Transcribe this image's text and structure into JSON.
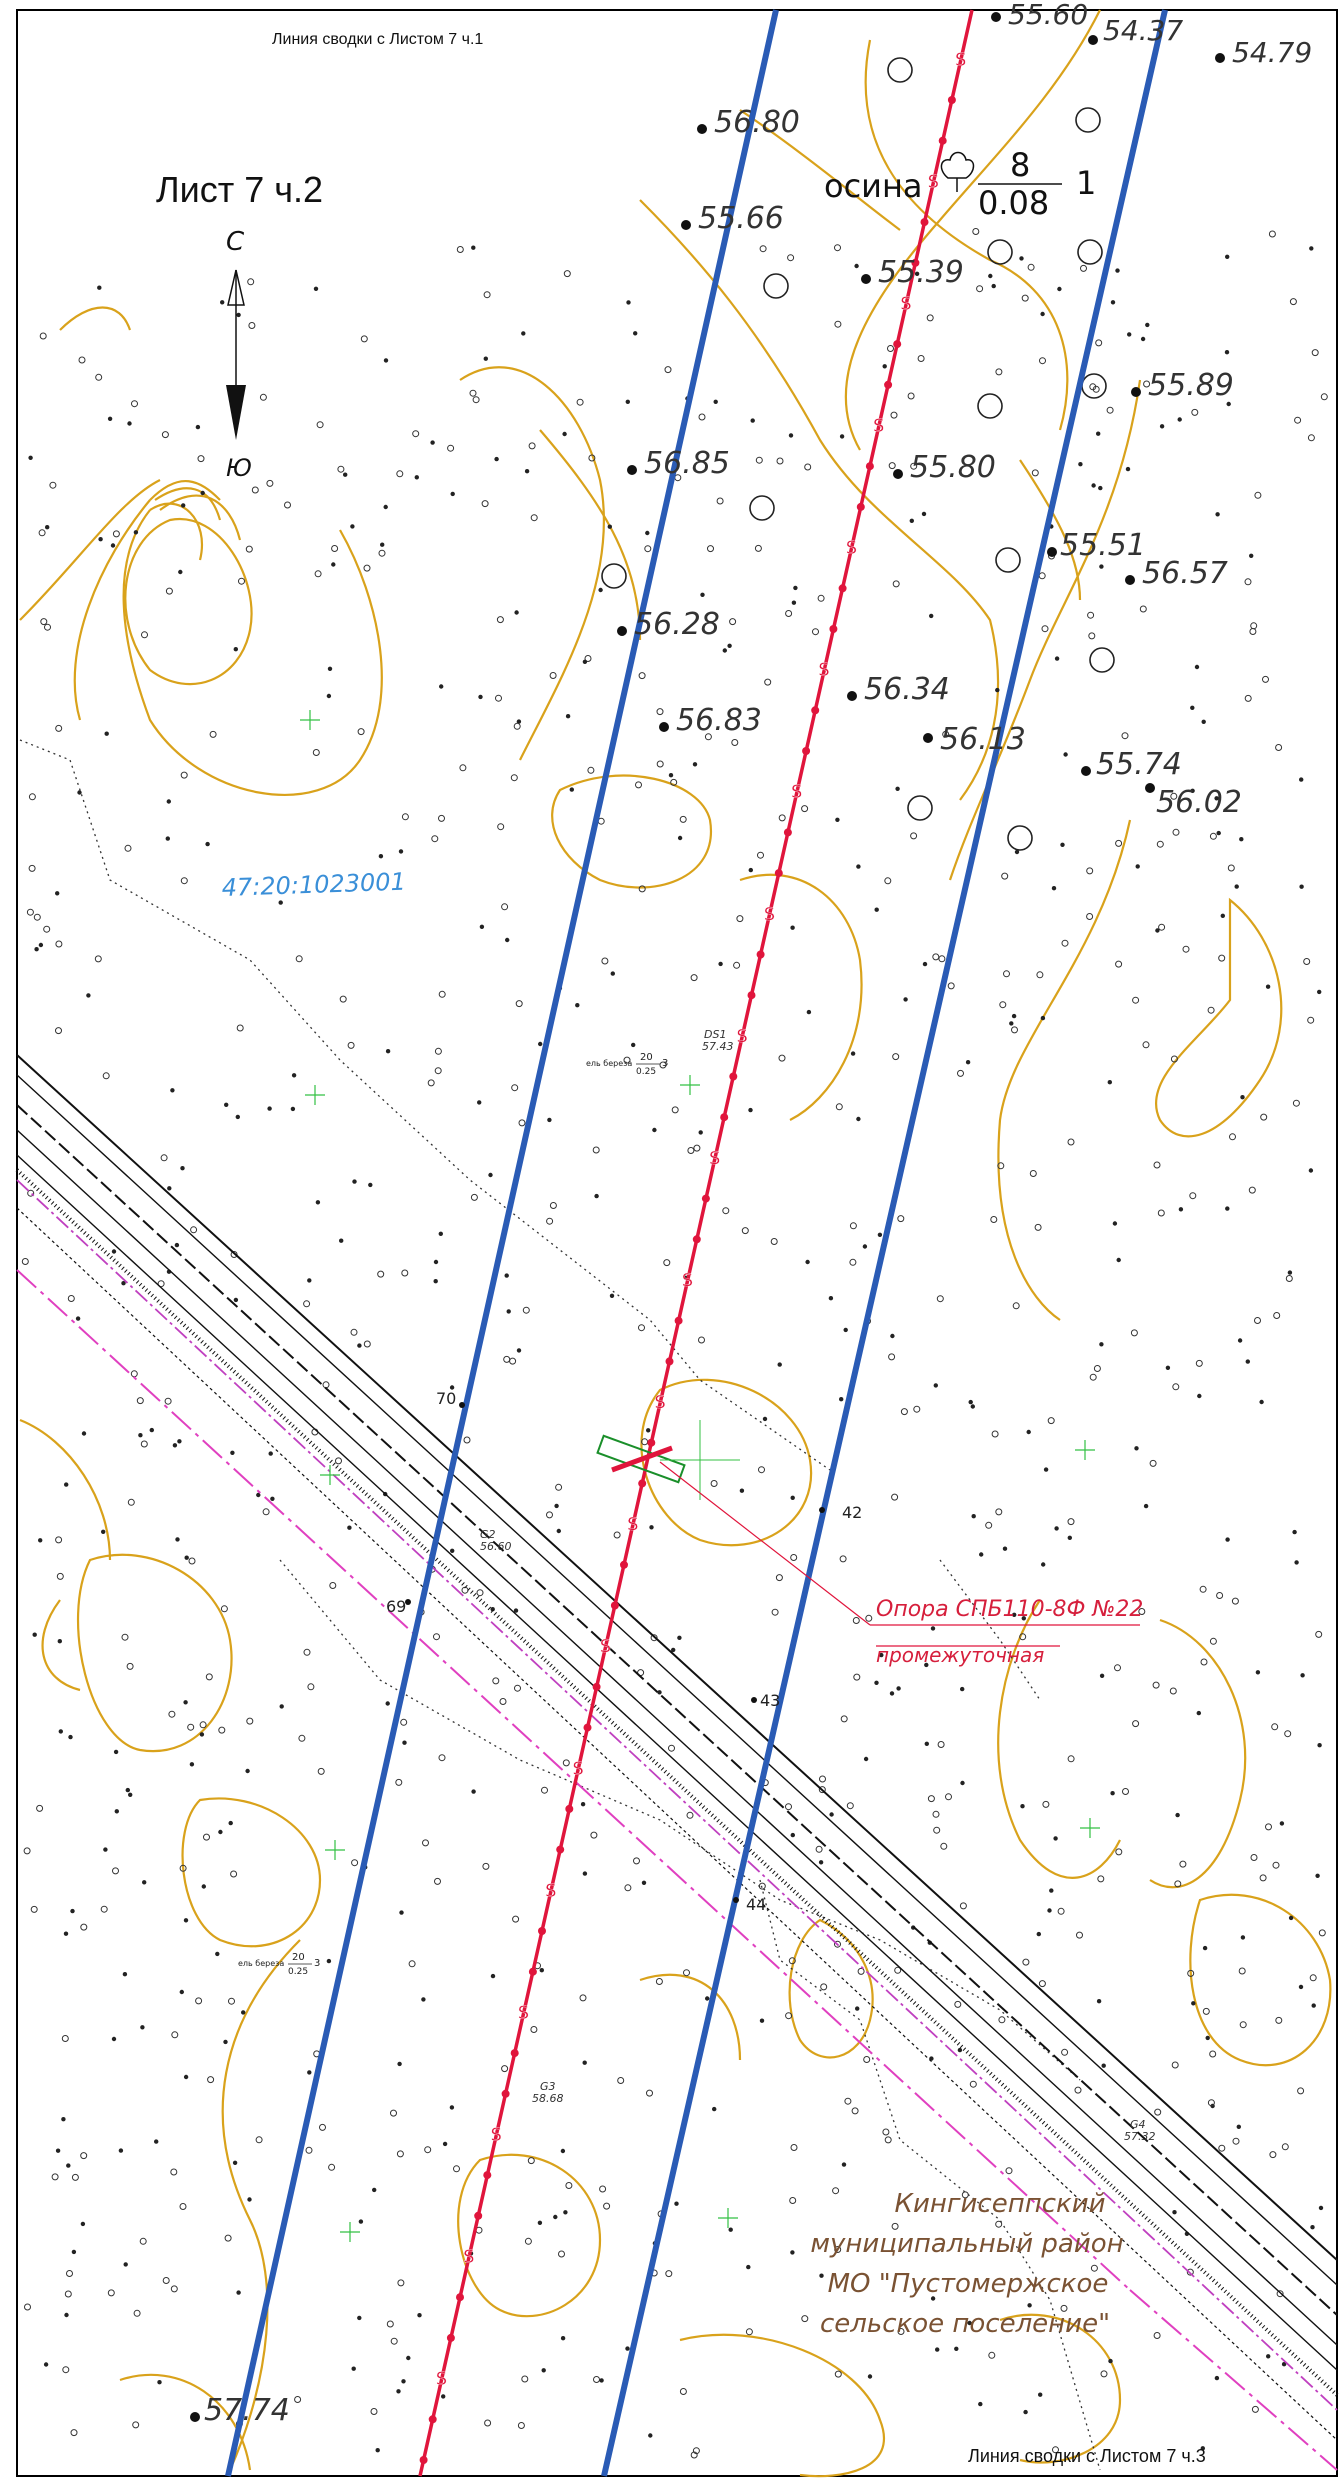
{
  "sheet": {
    "match_top": "Линия сводки с Листом 7 ч.1",
    "title": "Лист 7 ч.2",
    "match_bottom": "Линия сводки с Листом 7 ч.3"
  },
  "north_arrow": {
    "north": "С",
    "south": "Ю"
  },
  "tree_symbol": {
    "species": "осина",
    "numerator": "8",
    "denominator": "0.08",
    "count": "1"
  },
  "small_tree_labels": [
    {
      "species": "ель береза",
      "numerator": "20",
      "denominator": "0.25",
      "count": "3"
    },
    {
      "species": "ель береза",
      "numerator": "20",
      "denominator": "0.25",
      "count": "3"
    }
  ],
  "cadastral_number": "47:20:1023001",
  "support": {
    "line1": "Опора СПБ110-8Ф №22",
    "line2": "промежуточная"
  },
  "district": {
    "line1": "Кингисеппский",
    "line2": "муниципальный район",
    "line3": "МО \"Пустомержское",
    "line4": "сельское поселение\""
  },
  "elevations": [
    {
      "value": "55.60"
    },
    {
      "value": "54.37"
    },
    {
      "value": "54.79"
    },
    {
      "value": "56.80"
    },
    {
      "value": "55.66"
    },
    {
      "value": "55.39"
    },
    {
      "value": "55.89"
    },
    {
      "value": "56.85"
    },
    {
      "value": "55.80"
    },
    {
      "value": "55.51"
    },
    {
      "value": "56.57"
    },
    {
      "value": "56.28"
    },
    {
      "value": "56.34"
    },
    {
      "value": "56.83"
    },
    {
      "value": "56.13"
    },
    {
      "value": "55.74"
    },
    {
      "value": "56.02"
    },
    {
      "value": "57.74"
    }
  ],
  "pickets": [
    "70",
    "69",
    "42",
    "43",
    "44"
  ],
  "ground_points": [
    {
      "code": "G2",
      "value": "56.60"
    },
    {
      "code": "G3",
      "value": "58.68"
    },
    {
      "code": "G4",
      "value": "57.32"
    },
    {
      "code": "DS1",
      "value": "57.43"
    }
  ],
  "colors": {
    "contour": "#d9a21b",
    "route_line": "#e0153c",
    "corridor": "#2a5bb5",
    "boundary": "#e040c0"
  }
}
